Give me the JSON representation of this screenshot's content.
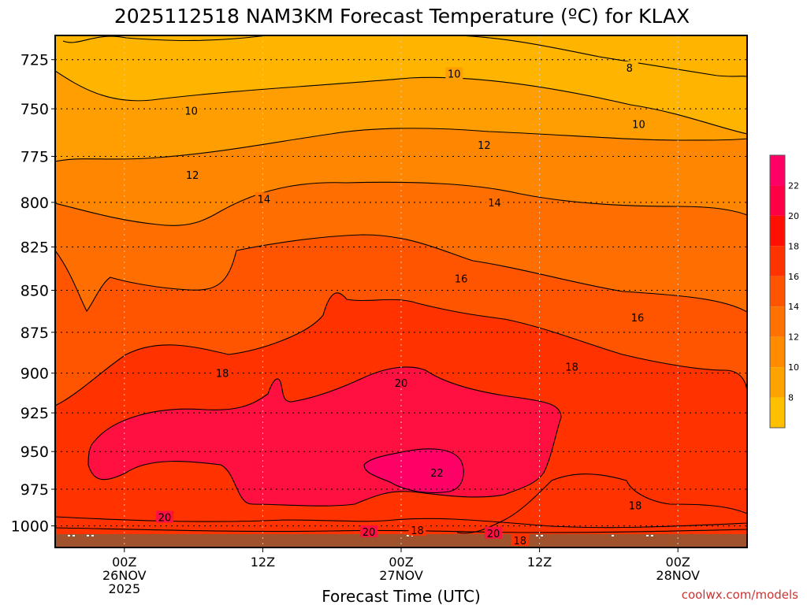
{
  "chart_data": {
    "type": "heatmap",
    "title": "2025112518 NAM3KM Forecast Temperature (ºC) for KLAX",
    "xlabel": "Forecast Time (UTC)",
    "ylabel": "",
    "x_ticks": [
      {
        "hour": 6,
        "lines": [
          "00Z",
          "26NOV",
          "2025"
        ]
      },
      {
        "hour": 18,
        "lines": [
          "12Z"
        ]
      },
      {
        "hour": 30,
        "lines": [
          "00Z",
          "27NOV"
        ]
      },
      {
        "hour": 42,
        "lines": [
          "12Z"
        ]
      },
      {
        "hour": 54,
        "lines": [
          "00Z",
          "28NOV"
        ]
      }
    ],
    "xlim_hours": [
      0,
      60
    ],
    "y_ticks": [
      725,
      750,
      775,
      800,
      825,
      850,
      875,
      900,
      925,
      950,
      975,
      1000
    ],
    "ylim_hpa": [
      1015,
      713
    ],
    "grid": true,
    "units": "ºC",
    "levels": [
      8,
      10,
      12,
      14,
      16,
      18,
      20,
      22
    ],
    "colorbar": {
      "placement": "right",
      "tick_labels": [
        "8",
        "10",
        "12",
        "14",
        "16",
        "18",
        "20",
        "22"
      ],
      "colors": [
        "#FFC000",
        "#FFA300",
        "#FF8C00",
        "#FF7100",
        "#FF5500",
        "#FF3300",
        "#FF1000",
        "#FF0044",
        "#FF0066"
      ]
    },
    "fill_colors": {
      "8": "#FFB400",
      "10": "#FF9E00",
      "12": "#FF8600",
      "14": "#FF6E00",
      "16": "#FF5500",
      "18": "#FF3200",
      "20": "#FF1040",
      "22": "#FF0066"
    },
    "ground_color": "#A0522D",
    "contours": [
      {
        "value": 8,
        "label_points": [
          {
            "hour": 49.8,
            "hpa": 729
          }
        ]
      },
      {
        "value": 10,
        "label_points": [
          {
            "hour": 11.8,
            "hpa": 751
          },
          {
            "hour": 34.6,
            "hpa": 732
          },
          {
            "hour": 50.6,
            "hpa": 758
          }
        ]
      },
      {
        "value": 12,
        "label_points": [
          {
            "hour": 11.9,
            "hpa": 785
          },
          {
            "hour": 37.2,
            "hpa": 769
          }
        ]
      },
      {
        "value": 14,
        "label_points": [
          {
            "hour": 18.1,
            "hpa": 798
          },
          {
            "hour": 38.1,
            "hpa": 800
          }
        ]
      },
      {
        "value": 16,
        "label_points": [
          {
            "hour": 35.2,
            "hpa": 843
          },
          {
            "hour": 50.5,
            "hpa": 866
          }
        ]
      },
      {
        "value": 18,
        "label_points": [
          {
            "hour": 14.5,
            "hpa": 900
          },
          {
            "hour": 44.8,
            "hpa": 896
          },
          {
            "hour": 50.3,
            "hpa": 986
          },
          {
            "hour": 31.4,
            "hpa": 1003
          },
          {
            "hour": 40.3,
            "hpa": 1010
          }
        ]
      },
      {
        "value": 20,
        "label_points": [
          {
            "hour": 30.0,
            "hpa": 906
          },
          {
            "hour": 9.5,
            "hpa": 994
          },
          {
            "hour": 27.2,
            "hpa": 1004
          },
          {
            "hour": 38.0,
            "hpa": 1005
          }
        ]
      },
      {
        "value": 22,
        "label_points": [
          {
            "hour": 33.1,
            "hpa": 964
          }
        ]
      }
    ]
  },
  "credit": {
    "text": "coolwx.com/models",
    "color": "#CC3333"
  }
}
